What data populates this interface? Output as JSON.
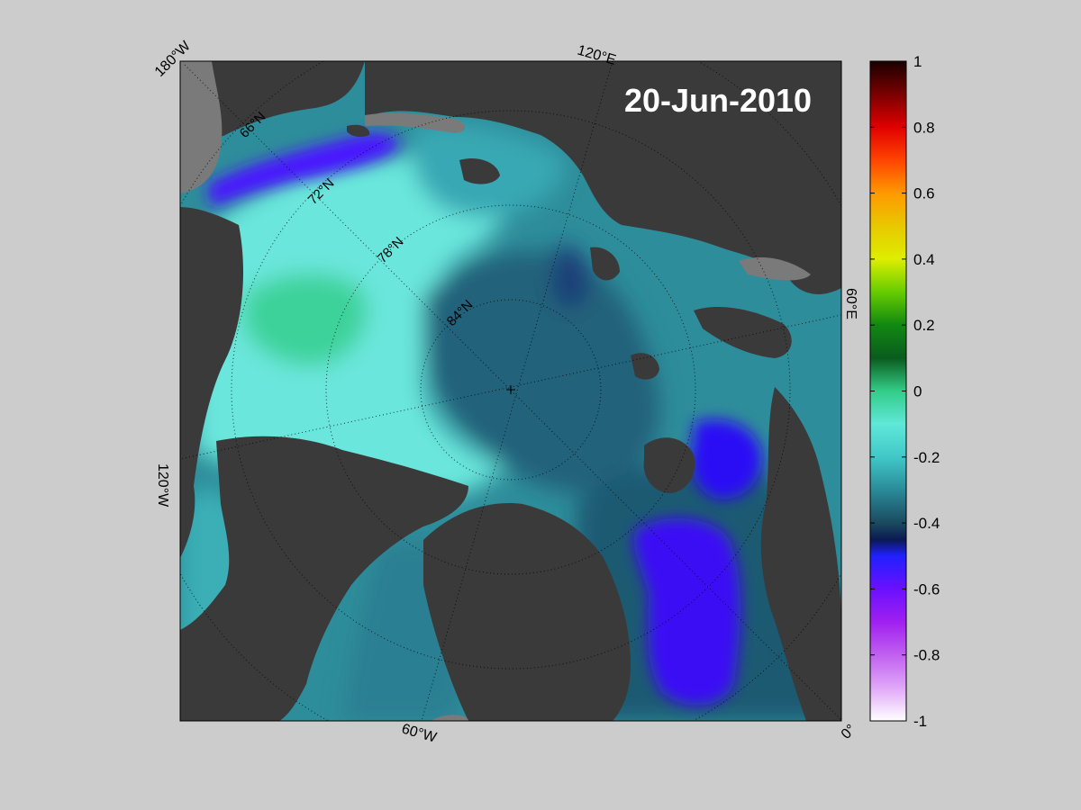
{
  "map": {
    "date_label": "20-Jun-2010",
    "projection": "north polar stereographic",
    "land_color": "#3a3a3a",
    "coast_fill_color": "#7a7a7a",
    "background_color": "#cccccc",
    "graticule_style": "dotted",
    "latitude_labels": [
      "66°N",
      "72°N",
      "78°N",
      "84°N"
    ],
    "longitude_labels": {
      "top_left": "180°W",
      "top": "120°E",
      "right": "60°E",
      "bottom_right": "0°",
      "bottom": "60°W",
      "left": "120°W"
    },
    "regions": [
      {
        "name": "beaufort-shelf-low",
        "level": -0.55
      },
      {
        "name": "east-siberian-high",
        "level": -0.05
      },
      {
        "name": "central-basin",
        "level": -0.35
      },
      {
        "name": "barents-low",
        "level": -0.55
      },
      {
        "name": "greenland-sea-low",
        "level": -0.55
      }
    ]
  },
  "colorbar": {
    "min": -1,
    "max": 1,
    "ticks": [
      "1",
      "0.8",
      "0.6",
      "0.4",
      "0.2",
      "0",
      "-0.2",
      "-0.4",
      "-0.6",
      "-0.8",
      "-1"
    ],
    "tick_values": [
      1,
      0.8,
      0.6,
      0.4,
      0.2,
      0,
      -0.2,
      -0.4,
      -0.6,
      -0.8,
      -1
    ],
    "colors": [
      {
        "value": 1.0,
        "color": "#1a0000"
      },
      {
        "value": 0.9,
        "color": "#7a0000"
      },
      {
        "value": 0.8,
        "color": "#e00000"
      },
      {
        "value": 0.7,
        "color": "#ff4400"
      },
      {
        "value": 0.6,
        "color": "#ff9900"
      },
      {
        "value": 0.5,
        "color": "#e8c800"
      },
      {
        "value": 0.4,
        "color": "#ddee00"
      },
      {
        "value": 0.3,
        "color": "#66cc00"
      },
      {
        "value": 0.2,
        "color": "#118811"
      },
      {
        "value": 0.1,
        "color": "#0a5c1e"
      },
      {
        "value": 0.0,
        "color": "#33cc88"
      },
      {
        "value": -0.1,
        "color": "#5fe8d8"
      },
      {
        "value": -0.2,
        "color": "#40c8c8"
      },
      {
        "value": -0.3,
        "color": "#2a8a98"
      },
      {
        "value": -0.4,
        "color": "#1a4a60"
      },
      {
        "value": -0.45,
        "color": "#0a1a50"
      },
      {
        "value": -0.5,
        "color": "#2020ff"
      },
      {
        "value": -0.6,
        "color": "#6a10ff"
      },
      {
        "value": -0.7,
        "color": "#a020f0"
      },
      {
        "value": -0.8,
        "color": "#c060f0"
      },
      {
        "value": -0.9,
        "color": "#e0a8f8"
      },
      {
        "value": -1.0,
        "color": "#ffffff"
      }
    ]
  }
}
